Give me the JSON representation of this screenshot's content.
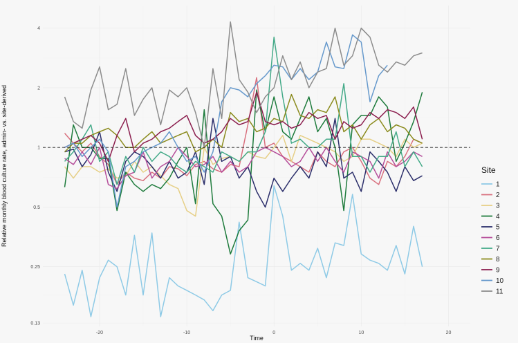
{
  "chart_data": {
    "type": "line",
    "title": "",
    "xlabel": "Time",
    "ylabel": "Relative monthly blood culture rate, admin- vs. site-derived",
    "x_scale": "linear",
    "y_scale": "log2",
    "xlim": [
      -26.5,
      22.5
    ],
    "ylim": [
      0.125,
      5.2
    ],
    "x_ticks": [
      -20,
      -10,
      0,
      10,
      20
    ],
    "x_tick_labels": [
      "-20",
      "-10",
      "0",
      "10",
      "20"
    ],
    "y_ticks": [
      0.13,
      0.25,
      0.5,
      1,
      2,
      4
    ],
    "y_tick_labels": [
      "0.13",
      "0.25",
      "0.5",
      "1",
      "2",
      "4"
    ],
    "reference_line": {
      "y": 1,
      "style": "dashed"
    },
    "grid": true,
    "legend": {
      "title": "Site",
      "position": "right"
    },
    "x": [
      -24,
      -23,
      -22,
      -21,
      -20,
      -19,
      -18,
      -17,
      -16,
      -15,
      -14,
      -13,
      -12,
      -11,
      -10,
      -9,
      -8,
      -7,
      -6,
      -5,
      -4,
      -3,
      -2,
      -1,
      0,
      1,
      2,
      3,
      4,
      5,
      6,
      7,
      8,
      9,
      10,
      11,
      12,
      13,
      14,
      15,
      16,
      17
    ],
    "series": [
      {
        "name": "1",
        "color": "#8ecae6",
        "values": [
          0.23,
          0.16,
          0.24,
          0.14,
          0.22,
          0.27,
          0.25,
          0.18,
          0.36,
          0.18,
          0.37,
          0.14,
          0.22,
          0.2,
          0.19,
          0.18,
          0.17,
          0.15,
          0.18,
          0.19,
          0.42,
          0.22,
          0.21,
          0.2,
          0.64,
          0.45,
          0.24,
          0.26,
          0.24,
          0.31,
          0.22,
          0.33,
          0.32,
          0.58,
          0.29,
          0.27,
          0.26,
          0.24,
          0.32,
          0.23,
          0.4,
          0.25
        ]
      },
      {
        "name": "2",
        "color": "#d9707e",
        "values": [
          1.18,
          1.05,
          0.95,
          1.05,
          0.9,
          0.82,
          0.65,
          0.75,
          0.7,
          0.68,
          0.75,
          0.7,
          0.8,
          0.78,
          0.72,
          0.82,
          0.85,
          0.78,
          0.75,
          0.82,
          0.8,
          1.3,
          2.25,
          1.0,
          1.05,
          0.9,
          0.85,
          0.8,
          0.75,
          0.95,
          0.85,
          0.8,
          0.95,
          1.0,
          0.85,
          0.7,
          0.65,
          0.85,
          0.8,
          0.9,
          1.1,
          1.05
        ]
      },
      {
        "name": "3",
        "color": "#e6cf86",
        "values": [
          0.8,
          0.7,
          0.8,
          0.8,
          0.75,
          0.78,
          0.7,
          0.72,
          0.85,
          0.75,
          0.8,
          0.72,
          0.65,
          0.62,
          0.48,
          0.45,
          1.0,
          0.82,
          0.88,
          0.9,
          0.85,
          0.95,
          0.9,
          0.88,
          1.0,
          1.15,
          0.85,
          1.15,
          1.1,
          1.05,
          1.0,
          0.95,
          0.85,
          0.9,
          1.1,
          1.1,
          1.05,
          1.0,
          0.9,
          1.1,
          1.0,
          1.05
        ]
      },
      {
        "name": "4",
        "color": "#1e7b3c",
        "values": [
          0.63,
          1.3,
          1.0,
          1.0,
          0.88,
          0.88,
          0.48,
          0.75,
          0.65,
          0.6,
          0.65,
          0.62,
          0.7,
          0.85,
          1.0,
          0.52,
          1.55,
          0.52,
          0.45,
          0.29,
          0.38,
          0.43,
          1.95,
          1.2,
          1.8,
          1.2,
          1.1,
          1.4,
          1.8,
          1.2,
          1.4,
          1.0,
          0.48,
          1.3,
          1.45,
          1.45,
          1.8,
          1.6,
          0.85,
          1.05,
          1.35,
          1.9
        ]
      },
      {
        "name": "5",
        "color": "#2c2f6b",
        "values": [
          0.95,
          0.98,
          0.8,
          0.92,
          1.2,
          0.75,
          0.6,
          0.85,
          0.95,
          0.9,
          0.8,
          0.7,
          0.85,
          0.7,
          0.75,
          0.95,
          0.65,
          1.4,
          0.85,
          0.9,
          0.7,
          0.8,
          0.6,
          0.5,
          0.7,
          0.6,
          0.7,
          0.8,
          0.7,
          0.95,
          0.8,
          1.4,
          0.7,
          0.75,
          0.6,
          0.95,
          0.85,
          0.75,
          0.6,
          0.8,
          0.68,
          0.72
        ]
      },
      {
        "name": "6",
        "color": "#b64f9b",
        "values": [
          0.88,
          0.82,
          0.95,
          0.82,
          1.0,
          0.65,
          0.62,
          0.72,
          0.75,
          0.95,
          0.7,
          0.8,
          0.85,
          1.0,
          0.9,
          0.8,
          0.82,
          0.9,
          0.75,
          0.85,
          0.75,
          0.8,
          0.95,
          1.0,
          0.95,
          0.9,
          0.8,
          0.85,
          1.0,
          0.85,
          1.0,
          0.85,
          0.75,
          0.95,
          0.9,
          0.85,
          0.7,
          0.95,
          0.8,
          0.85,
          0.95,
          0.9
        ]
      },
      {
        "name": "7",
        "color": "#44aa88",
        "values": [
          0.85,
          0.95,
          1.1,
          1.3,
          0.85,
          0.95,
          0.65,
          0.9,
          0.75,
          1.0,
          0.85,
          0.95,
          0.9,
          0.8,
          0.75,
          0.85,
          0.8,
          0.75,
          0.95,
          0.9,
          0.85,
          0.95,
          0.95,
          1.2,
          3.6,
          1.8,
          1.05,
          1.1,
          1.0,
          1.0,
          1.1,
          1.1,
          2.1,
          0.9,
          0.9,
          0.75,
          0.9,
          0.9,
          1.2,
          0.8,
          0.95,
          0.8
        ]
      },
      {
        "name": "8",
        "color": "#8b8b1e",
        "values": [
          0.95,
          1.05,
          1.05,
          1.15,
          1.2,
          1.25,
          1.15,
          1.0,
          1.0,
          1.1,
          1.2,
          1.05,
          1.1,
          1.15,
          1.2,
          0.95,
          1.0,
          1.1,
          1.0,
          1.5,
          1.35,
          1.4,
          1.2,
          1.25,
          1.4,
          1.35,
          1.85,
          1.45,
          1.4,
          1.55,
          1.5,
          1.8,
          1.2,
          1.3,
          1.1,
          1.3,
          1.4,
          1.2,
          1.3,
          1.25,
          1.1,
          1.05
        ]
      },
      {
        "name": "9",
        "color": "#8b1e4e",
        "values": [
          1.0,
          1.05,
          1.1,
          1.15,
          1.05,
          0.85,
          1.15,
          1.4,
          0.95,
          1.05,
          1.1,
          1.2,
          1.25,
          1.35,
          1.45,
          1.15,
          1.05,
          1.1,
          1.2,
          1.4,
          1.3,
          1.35,
          1.9,
          1.35,
          1.3,
          1.35,
          1.25,
          1.3,
          1.5,
          1.4,
          1.45,
          1.1,
          1.35,
          1.25,
          1.3,
          1.5,
          1.4,
          1.55,
          1.5,
          1.4,
          1.6,
          1.1
        ]
      },
      {
        "name": "10",
        "color": "#6699cc",
        "values": [
          1.0,
          1.05,
          0.9,
          1.0,
          1.1,
          0.95,
          0.5,
          0.8,
          0.85,
          0.95,
          1.0,
          1.05,
          1.2,
          1.0,
          0.85,
          0.9,
          0.75,
          0.95,
          1.7,
          2.0,
          1.95,
          1.8,
          2.1,
          2.3,
          2.6,
          2.55,
          2.2,
          2.5,
          2.2,
          2.4,
          3.4,
          2.55,
          2.5,
          3.7,
          3.4,
          1.7,
          2.3,
          2.6,
          null,
          null,
          null,
          null
        ]
      },
      {
        "name": "11",
        "color": "#8c8c8c",
        "values": [
          1.8,
          1.35,
          1.25,
          1.95,
          2.55,
          1.55,
          1.65,
          2.5,
          1.45,
          1.75,
          2.0,
          1.3,
          1.95,
          1.8,
          2.0,
          1.5,
          1.0,
          2.5,
          1.4,
          4.3,
          2.2,
          1.9,
          1.5,
          1.8,
          2.0,
          2.9,
          2.2,
          2.7,
          2.0,
          2.4,
          2.5,
          4.0,
          2.6,
          2.9,
          4.0,
          3.6,
          2.6,
          2.4,
          2.7,
          2.6,
          2.9,
          3.0
        ]
      }
    ]
  }
}
